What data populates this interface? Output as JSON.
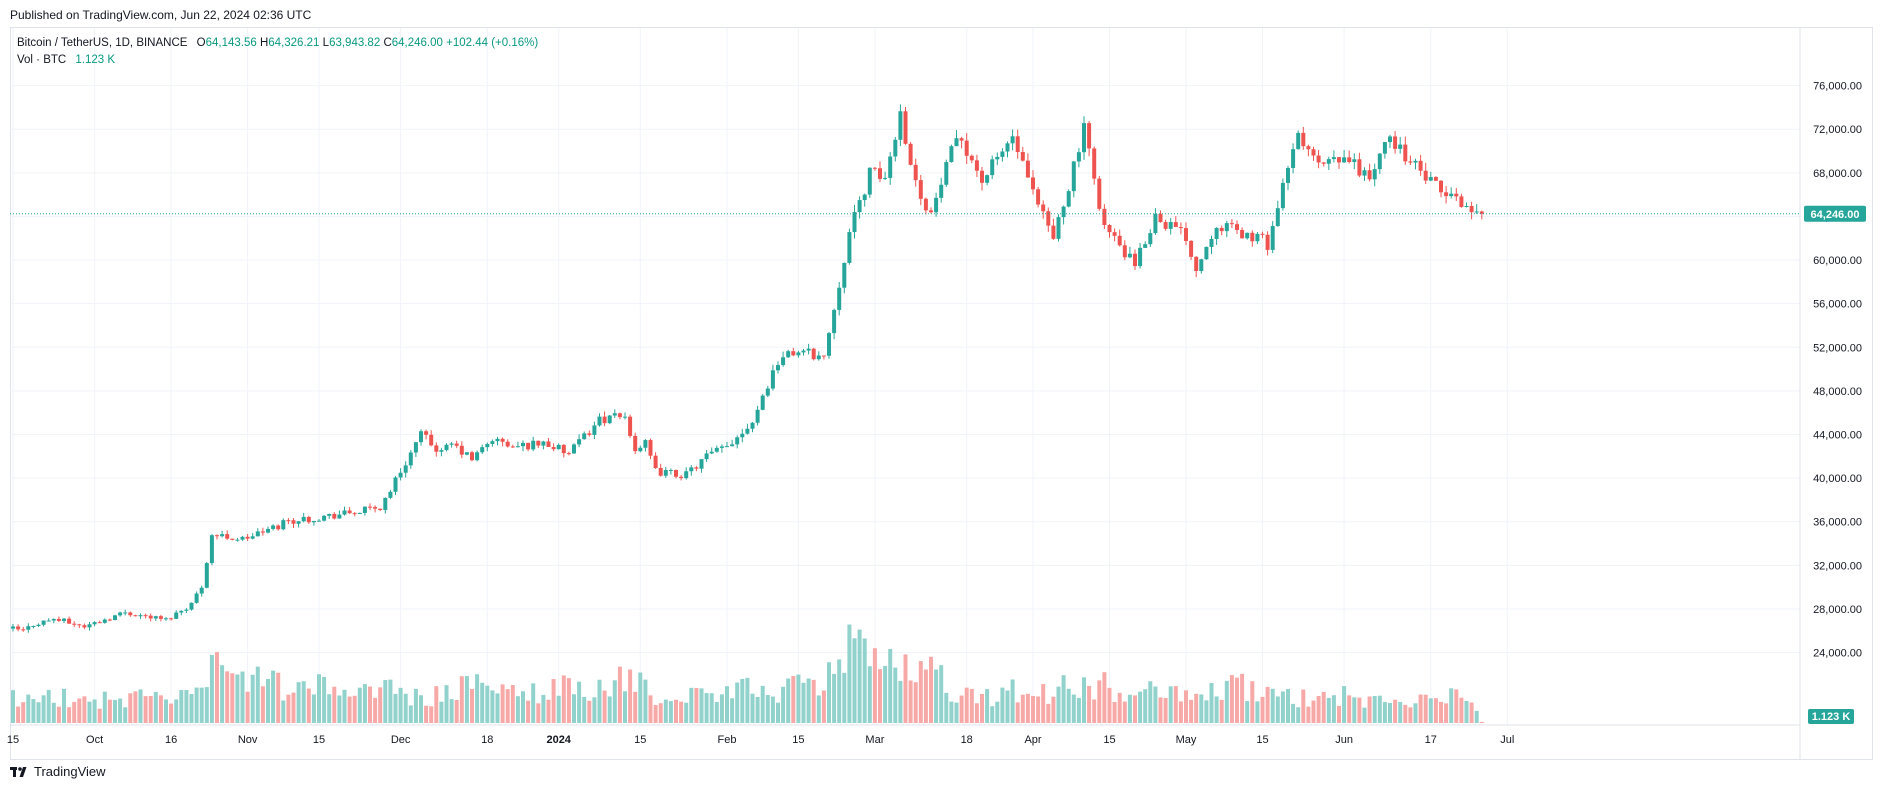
{
  "published": "Published on TradingView.com, Jun 22, 2024 02:36 UTC",
  "legend": {
    "symbol": "Bitcoin / TetherUS, 1D, BINANCE",
    "o_label": "O",
    "o": "64,143.56",
    "h_label": "H",
    "h": "64,326.21",
    "l_label": "L",
    "l": "63,943.82",
    "c_label": "C",
    "c": "64,246.00",
    "change": "+102.44 (+0.16%)",
    "vol_label": "Vol · BTC",
    "vol": "1.123 K"
  },
  "footer": {
    "brand": "TradingView"
  },
  "colors": {
    "up": "#26a69a",
    "down": "#ef5350",
    "up_vol": "#92d2cc",
    "down_vol": "#f7a9a7",
    "grid": "#f0f3fa",
    "text": "#131722"
  },
  "chart_data": {
    "type": "candlestick",
    "title": "Bitcoin / TetherUS, 1D, BINANCE",
    "interval": "1D",
    "price_axis": {
      "ticks": [
        24000,
        28000,
        32000,
        36000,
        40000,
        44000,
        48000,
        52000,
        56000,
        60000,
        64000,
        68000,
        72000,
        76000
      ],
      "tick_labels": [
        "24,000.00",
        "28,000.00",
        "32,000.00",
        "36,000.00",
        "40,000.00",
        "44,000.00",
        "48,000.00",
        "52,000.00",
        "56,000.00",
        "60,000.00",
        "64,000.00",
        "68,000.00",
        "72,000.00",
        "76,000.00"
      ],
      "ylim": [
        18000,
        80000
      ]
    },
    "last_price": 64246.0,
    "last_price_label": "64,246.00",
    "last_volume_label": "1.123 K",
    "time_axis": {
      "labels": [
        "15",
        "Oct",
        "16",
        "Nov",
        "15",
        "Dec",
        "18",
        "2024",
        "15",
        "Feb",
        "15",
        "Mar",
        "18",
        "Apr",
        "15",
        "May",
        "15",
        "Jun",
        "17",
        "Jul"
      ],
      "bold": [
        "2024"
      ],
      "label_day_index": [
        0,
        16,
        31,
        46,
        60,
        76,
        93,
        107,
        123,
        140,
        154,
        169,
        187,
        200,
        215,
        230,
        245,
        261,
        278,
        293
      ]
    },
    "anchors": {
      "day_index": [
        0,
        2,
        4,
        8,
        14,
        22,
        30,
        35,
        37,
        39,
        45,
        52,
        53,
        60,
        66,
        72,
        80,
        84,
        86,
        90,
        94,
        98,
        104,
        109,
        115,
        120,
        122,
        124,
        126,
        132,
        136,
        140,
        145,
        150,
        154,
        159,
        164,
        168,
        171,
        174,
        177,
        180,
        184,
        186,
        190,
        196,
        200,
        204,
        210,
        214,
        220,
        224,
        230,
        232,
        236,
        240,
        244,
        246,
        252,
        256,
        262,
        266,
        270,
        276,
        280,
        282,
        284,
        286,
        288
      ],
      "close": [
        26200,
        26000,
        26600,
        27100,
        26400,
        27700,
        27000,
        28500,
        30100,
        34800,
        34400,
        35600,
        36000,
        36400,
        36800,
        37300,
        44000,
        42300,
        43100,
        41700,
        43600,
        42800,
        43300,
        42200,
        45400,
        45600,
        42700,
        43100,
        40600,
        40300,
        42000,
        42900,
        45300,
        50800,
        51700,
        51100,
        62500,
        68000,
        67500,
        73500,
        67000,
        64200,
        69800,
        71200,
        67300,
        71300,
        65900,
        62000,
        71900,
        63100,
        59400,
        64100,
        62200,
        59200,
        63500,
        62500,
        62000,
        61500,
        71500,
        68600,
        69200,
        67500,
        71300,
        68000,
        66200,
        65800,
        65400,
        64400,
        64246
      ],
      "volume": [
        10,
        9,
        7,
        10,
        8,
        9,
        10,
        9,
        12,
        20,
        16,
        14,
        12,
        13,
        12,
        13,
        9,
        10,
        12,
        14,
        11,
        12,
        11,
        14,
        12,
        16,
        13,
        15,
        10,
        9,
        12,
        10,
        13,
        12,
        14,
        13,
        32,
        22,
        18,
        24,
        21,
        22,
        12,
        10,
        9,
        12,
        9,
        12,
        15,
        14,
        10,
        12,
        9,
        10,
        12,
        14,
        12,
        10,
        9,
        9,
        10,
        8,
        7,
        8,
        7,
        10,
        8,
        7,
        1.123
      ]
    }
  }
}
